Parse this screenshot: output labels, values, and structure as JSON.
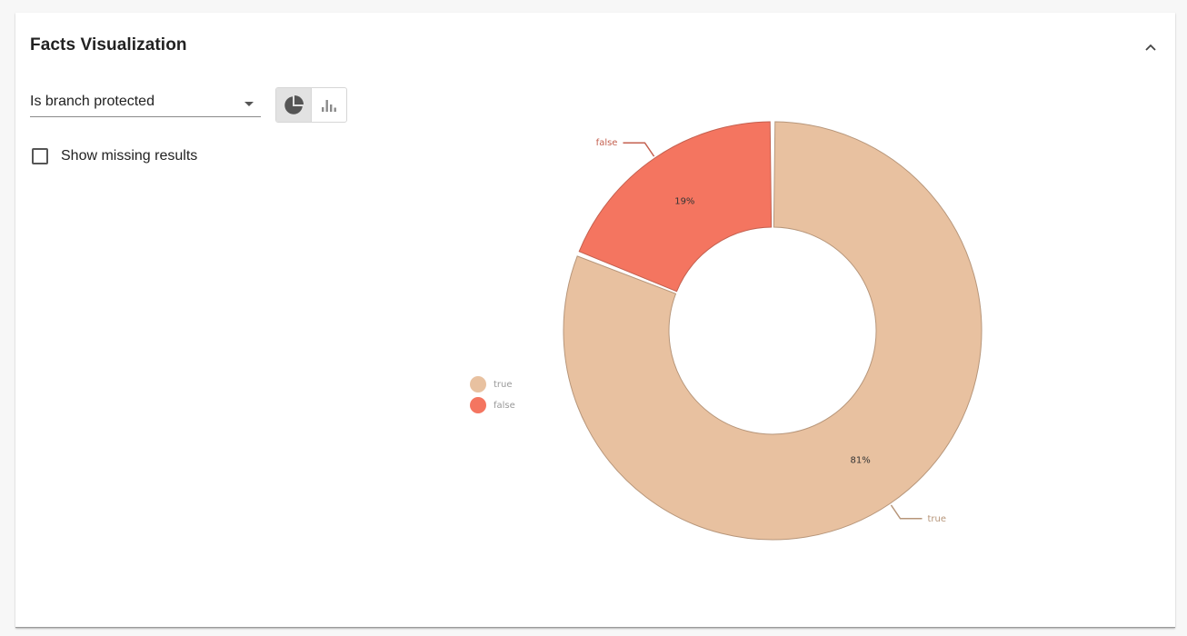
{
  "panel": {
    "title": "Facts Visualization"
  },
  "controls": {
    "fact_select": {
      "value": "Is branch protected"
    },
    "chart_type_toggle": {
      "options": [
        "pie-chart-icon",
        "bar-chart-icon"
      ],
      "selected": "pie-chart-icon"
    },
    "show_missing": {
      "label": "Show missing results",
      "checked": false
    }
  },
  "colors": {
    "true": "#e8c1a0",
    "false": "#f47560",
    "true_stroke": "#b7967a",
    "false_stroke": "#c4604f",
    "legend_text": "#999999"
  },
  "chart_data": {
    "type": "pie",
    "donut": true,
    "legend_position": "left",
    "slices": [
      {
        "label": "true",
        "value": 81,
        "display": "81%"
      },
      {
        "label": "false",
        "value": 19,
        "display": "19%"
      }
    ],
    "legend": [
      "true",
      "false"
    ]
  }
}
